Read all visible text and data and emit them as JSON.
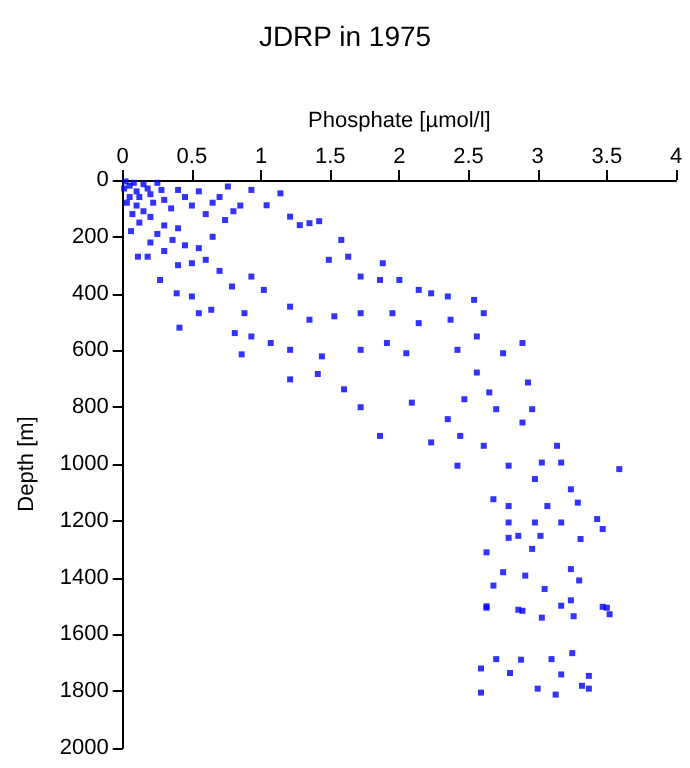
{
  "chart_data": {
    "type": "scatter",
    "title": "JDRP in 1975",
    "xlabel": "Phosphate [µmol/l]",
    "ylabel": "Depth [m]",
    "xlim": [
      0,
      4
    ],
    "xticks": [
      0,
      0.5,
      1,
      1.5,
      2,
      2.5,
      3,
      3.5,
      4
    ],
    "ylim": [
      2000,
      0
    ],
    "yticks": [
      0,
      200,
      400,
      600,
      800,
      1000,
      1200,
      1400,
      1600,
      1800,
      2000
    ],
    "grid": false,
    "marker": "square",
    "series": [
      {
        "color": "#0000ff",
        "x": [
          0.02,
          0.05,
          0.08,
          0.1,
          0.12,
          0.15,
          0.18,
          0.2,
          0.22,
          0.25,
          0.28,
          0.05,
          0.1,
          0.15,
          0.2,
          0.3,
          0.35,
          0.45,
          0.5,
          0.55,
          0.6,
          0.65,
          0.7,
          0.8,
          0.85,
          0.3,
          0.25,
          0.4,
          0.45,
          0.2,
          0.3,
          0.55,
          0.65,
          0.7,
          0.4,
          0.01,
          0.03,
          0.07,
          0.12,
          0.06,
          0.4,
          0.76,
          0.93,
          1.04,
          1.14,
          1.21,
          1.28,
          1.35,
          1.42,
          1.58,
          1.49,
          1.63,
          1.72,
          1.88,
          1.86,
          2.0,
          2.14,
          2.23,
          2.35,
          2.54,
          2.61,
          2.89,
          2.75,
          2.56,
          2.37,
          2.14,
          1.95,
          1.72,
          1.53,
          1.35,
          1.21,
          1.02,
          0.88,
          0.81,
          0.93,
          1.07,
          0.86,
          1.21,
          1.44,
          1.72,
          1.91,
          2.05,
          2.42,
          0.41,
          0.55,
          0.64,
          0.5,
          0.39,
          0.27,
          0.18,
          0.5,
          0.6,
          0.79,
          0.93,
          0.36,
          0.11,
          0.74,
          1.21,
          1.41,
          1.6,
          1.72,
          1.86,
          2.09,
          2.23,
          2.35,
          2.44,
          2.42,
          2.61,
          2.7,
          2.79,
          2.89,
          2.96,
          3.03,
          3.14,
          3.17,
          3.59,
          2.68,
          2.79,
          2.98,
          3.07,
          3.24,
          3.29,
          3.43,
          3.47,
          2.79,
          2.98,
          3.17,
          2.79,
          2.86,
          3.02,
          3.31,
          2.63,
          2.96,
          2.75,
          2.91,
          3.24,
          2.68,
          3.05,
          3.3,
          2.63,
          2.89,
          3.24,
          3.47,
          2.56,
          2.47,
          2.65,
          2.93,
          2.63,
          2.86,
          3.03,
          3.17,
          3.26,
          3.5,
          3.52,
          2.59,
          2.7,
          2.88,
          2.8,
          3.1,
          3.25,
          3.17,
          3.0,
          3.13,
          3.32,
          3.37,
          3.37,
          2.59
        ],
        "values": [
          5,
          20,
          10,
          40,
          60,
          15,
          30,
          50,
          80,
          10,
          35,
          60,
          90,
          110,
          130,
          70,
          100,
          60,
          90,
          40,
          120,
          80,
          60,
          110,
          90,
          160,
          190,
          170,
          230,
          220,
          250,
          240,
          200,
          320,
          300,
          30,
          80,
          120,
          150,
          180,
          35,
          23,
          35,
          89,
          47,
          129,
          159,
          152,
          145,
          211,
          281,
          270,
          340,
          293,
          352,
          352,
          387,
          399,
          410,
          422,
          469,
          574,
          610,
          551,
          492,
          504,
          469,
          469,
          480,
          492,
          446,
          387,
          469,
          539,
          551,
          574,
          614,
          598,
          621,
          598,
          574,
          610,
          598,
          520,
          469,
          457,
          410,
          399,
          352,
          270,
          293,
          281,
          375,
          340,
          211,
          270,
          141,
          702,
          683,
          737,
          800,
          901,
          784,
          924,
          842,
          901,
          1006,
          936,
          807,
          1006,
          854,
          807,
          995,
          936,
          995,
          1018,
          1124,
          1148,
          1053,
          1148,
          1089,
          1136,
          1194,
          1229,
          1206,
          1206,
          1206,
          1260,
          1253,
          1253,
          1264,
          1311,
          1299,
          1381,
          1393,
          1370,
          1428,
          1440,
          1410,
          1506,
          1517,
          1480,
          1503,
          678,
          772,
          748,
          713,
          1501,
          1513,
          1541,
          1499,
          1536,
          1506,
          1529,
          1720,
          1687,
          1689,
          1736,
          1687,
          1666,
          1741,
          1791,
          1812,
          1781,
          1746,
          1791,
          1805
        ]
      }
    ]
  }
}
